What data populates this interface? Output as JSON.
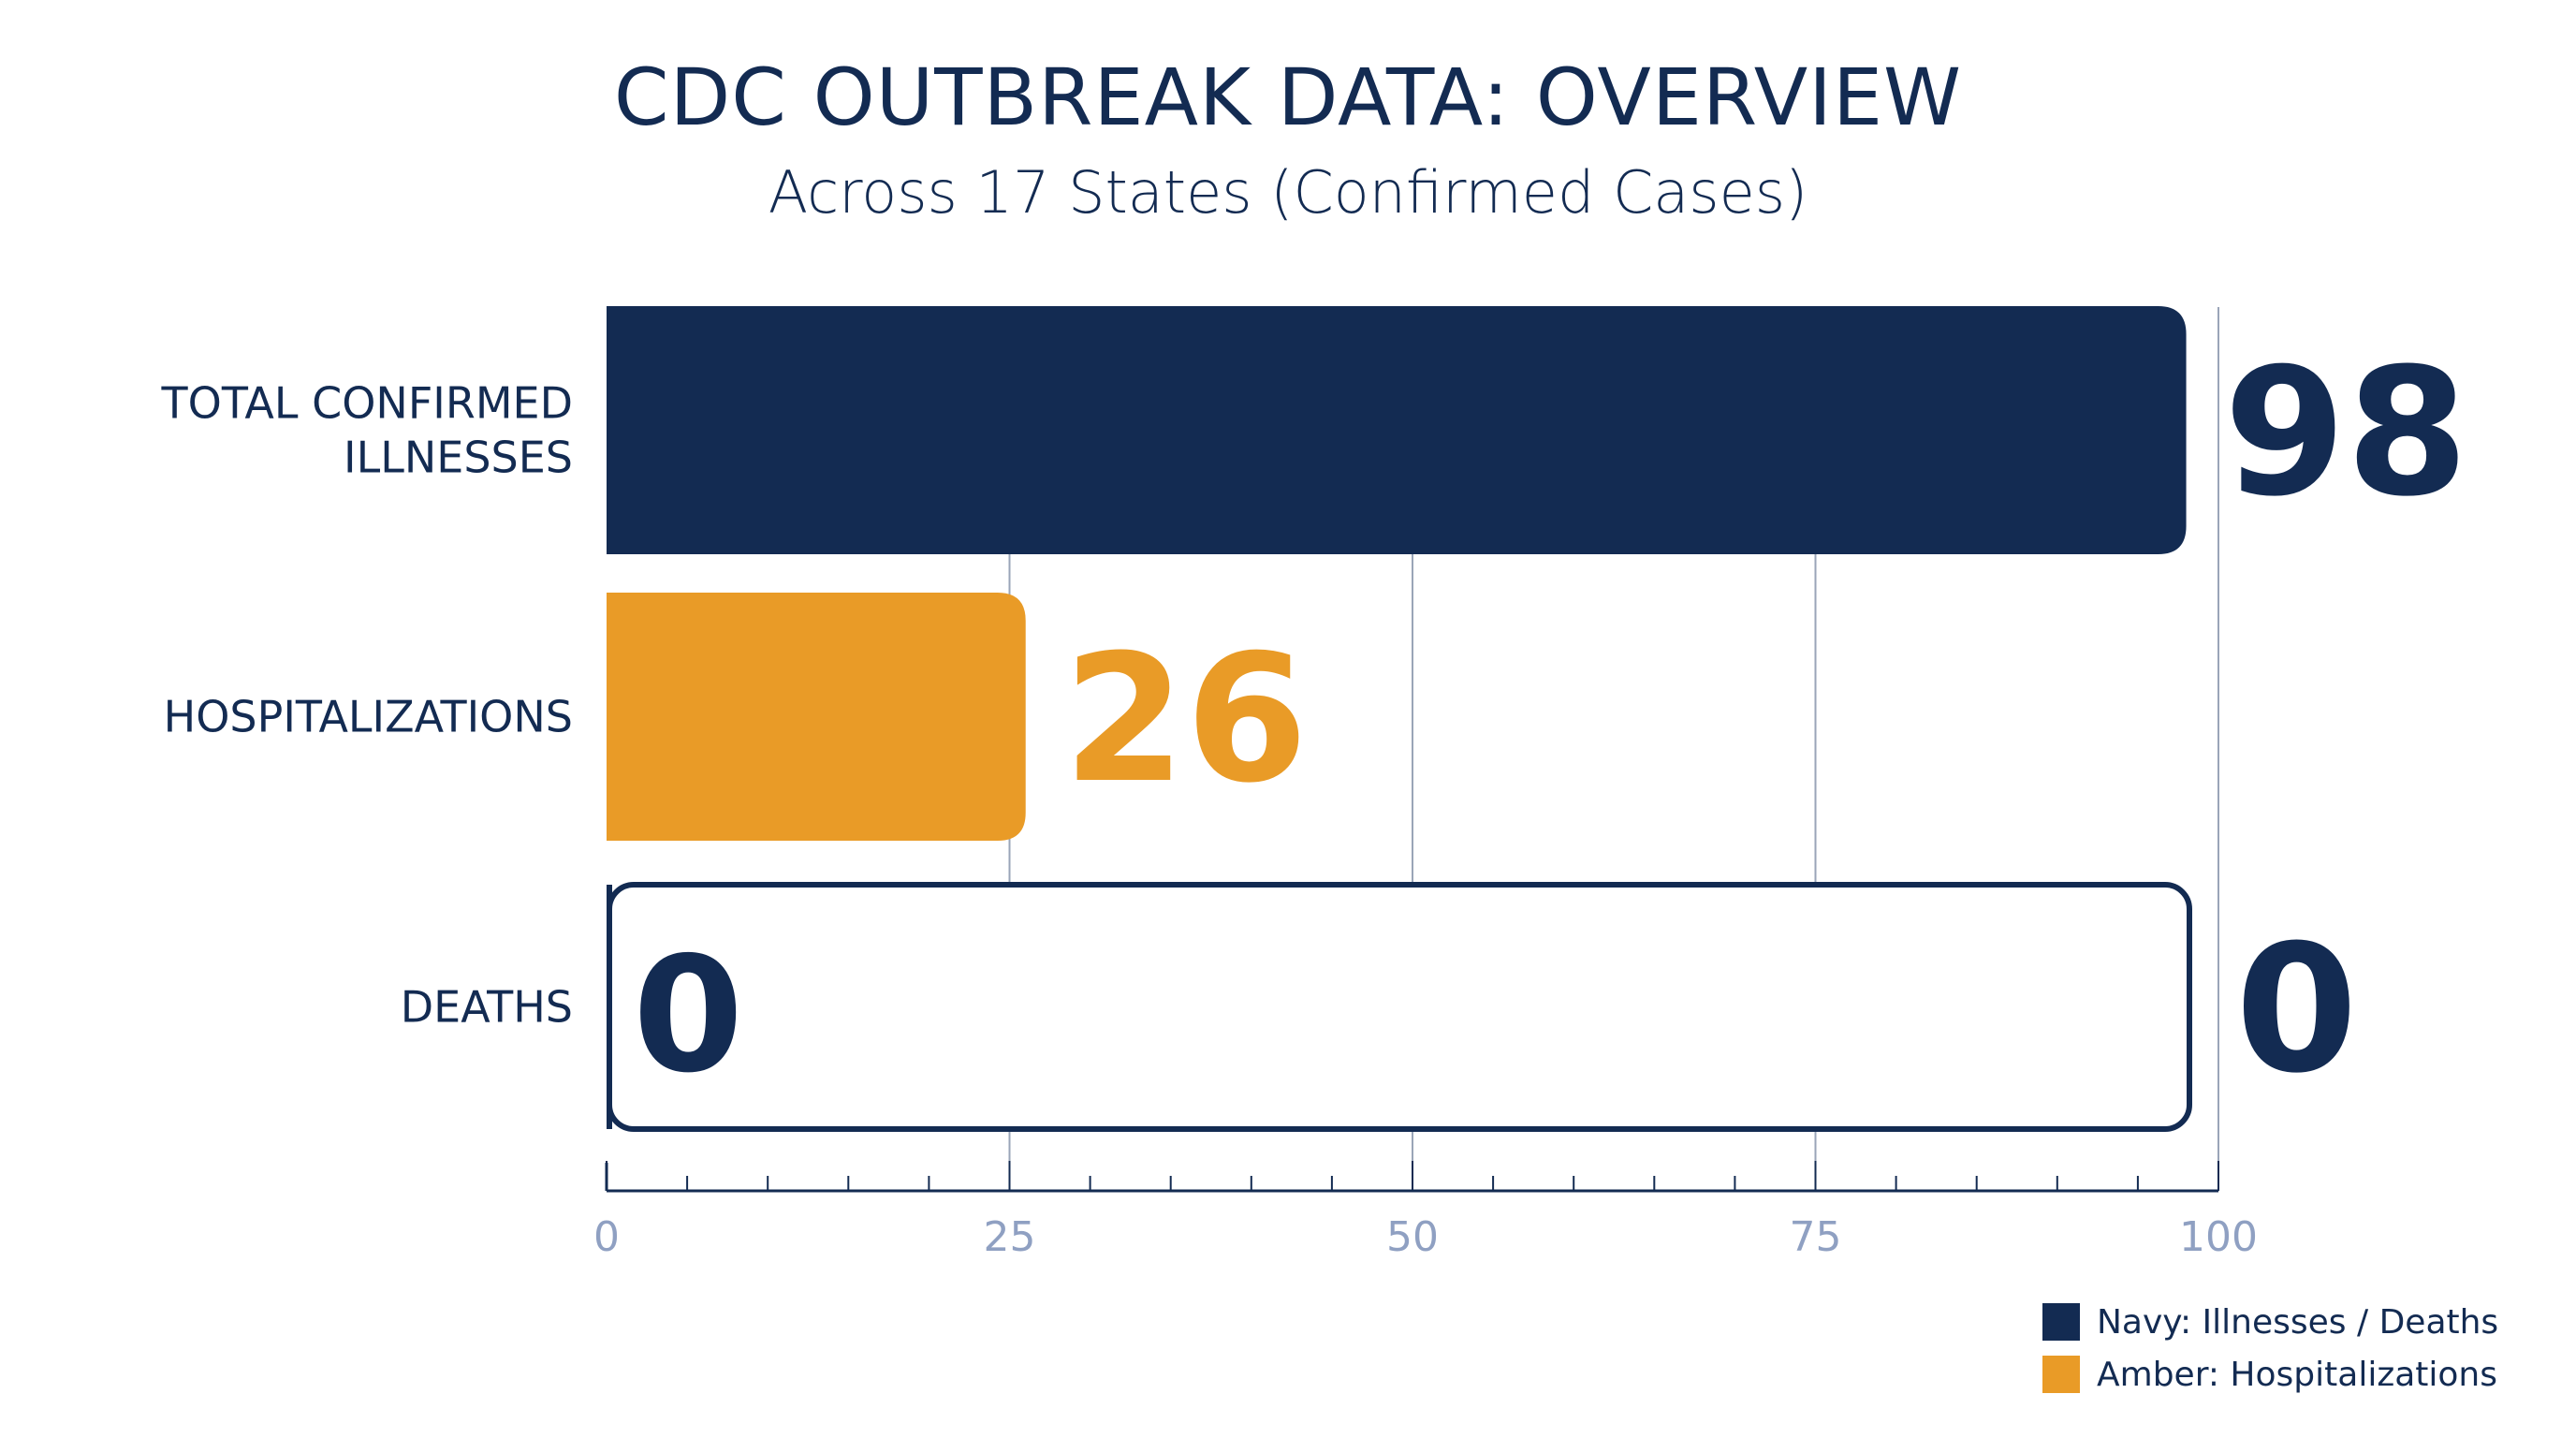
{
  "title": "CDC OUTBREAK DATA: OVERVIEW",
  "subtitle": "Across 17 States (Confirmed Cases)",
  "colors": {
    "navy": "#132b52",
    "amber": "#e99b27",
    "grid": "#9aa5b8",
    "tick_label": "#8fa0c2"
  },
  "chart_data": {
    "type": "bar",
    "orientation": "horizontal",
    "title": "CDC OUTBREAK DATA: OVERVIEW",
    "subtitle": "Across 17 States (Confirmed Cases)",
    "categories": [
      [
        "TOTAL CONFIRMED",
        "ILLNESSES"
      ],
      [
        "HOSPITALIZATIONS"
      ],
      [
        "DEATHS"
      ]
    ],
    "values": [
      98,
      26,
      0
    ],
    "value_labels": [
      "98",
      "26",
      "0"
    ],
    "bar_colors": [
      "navy",
      "amber",
      "navy"
    ],
    "deaths_inside_label": "0",
    "xlim": [
      0,
      100
    ],
    "x_ticks": [
      0,
      25,
      50,
      75,
      100
    ],
    "x_tick_labels": [
      "0",
      "25",
      "50",
      "75",
      "100"
    ],
    "minor_tick_step": 5,
    "grid": true,
    "xlabel": "",
    "ylabel": ""
  },
  "legend": [
    {
      "label": "Navy: Illnesses / Deaths",
      "color": "#132b52"
    },
    {
      "label": "Amber: Hospitalizations",
      "color": "#e99b27"
    }
  ]
}
